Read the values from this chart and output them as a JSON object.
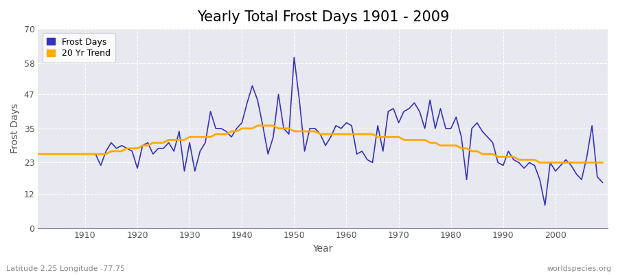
{
  "title": "Yearly Total Frost Days 1901 - 2009",
  "xlabel": "Year",
  "ylabel": "Frost Days",
  "subtitle": "Latitude 2.25 Longitude -77.75",
  "watermark": "worldspecies.org",
  "years": [
    1901,
    1902,
    1903,
    1904,
    1905,
    1906,
    1907,
    1908,
    1909,
    1910,
    1911,
    1912,
    1913,
    1914,
    1915,
    1916,
    1917,
    1918,
    1919,
    1920,
    1921,
    1922,
    1923,
    1924,
    1925,
    1926,
    1927,
    1928,
    1929,
    1930,
    1931,
    1932,
    1933,
    1934,
    1935,
    1936,
    1937,
    1938,
    1939,
    1940,
    1941,
    1942,
    1943,
    1944,
    1945,
    1946,
    1947,
    1948,
    1949,
    1950,
    1951,
    1952,
    1953,
    1954,
    1955,
    1956,
    1957,
    1958,
    1959,
    1960,
    1961,
    1962,
    1963,
    1964,
    1965,
    1966,
    1967,
    1968,
    1969,
    1970,
    1971,
    1972,
    1973,
    1974,
    1975,
    1976,
    1977,
    1978,
    1979,
    1980,
    1981,
    1982,
    1983,
    1984,
    1985,
    1986,
    1987,
    1988,
    1989,
    1990,
    1991,
    1992,
    1993,
    1994,
    1995,
    1996,
    1997,
    1998,
    1999,
    2000,
    2001,
    2002,
    2003,
    2004,
    2005,
    2006,
    2007,
    2008,
    2009
  ],
  "frost_days": [
    26,
    26,
    26,
    26,
    26,
    26,
    26,
    26,
    26,
    26,
    26,
    26,
    22,
    27,
    30,
    28,
    29,
    28,
    27,
    21,
    29,
    30,
    26,
    28,
    28,
    30,
    27,
    34,
    20,
    30,
    20,
    27,
    30,
    41,
    35,
    35,
    34,
    32,
    35,
    37,
    44,
    50,
    45,
    36,
    26,
    32,
    47,
    35,
    33,
    60,
    45,
    27,
    35,
    35,
    33,
    29,
    32,
    36,
    35,
    37,
    36,
    26,
    27,
    24,
    23,
    36,
    27,
    41,
    42,
    37,
    41,
    42,
    44,
    41,
    35,
    45,
    35,
    42,
    35,
    35,
    39,
    32,
    17,
    35,
    37,
    34,
    32,
    30,
    23,
    22,
    27,
    24,
    23,
    21,
    23,
    22,
    17,
    8,
    23,
    20,
    22,
    24,
    22,
    19,
    17,
    25,
    36,
    18,
    16
  ],
  "trend_years": [
    1901,
    1902,
    1903,
    1904,
    1905,
    1906,
    1907,
    1908,
    1909,
    1910,
    1911,
    1912,
    1913,
    1914,
    1915,
    1916,
    1917,
    1918,
    1919,
    1920,
    1921,
    1922,
    1923,
    1924,
    1925,
    1926,
    1927,
    1928,
    1929,
    1930,
    1931,
    1932,
    1933,
    1934,
    1935,
    1936,
    1937,
    1938,
    1939,
    1940,
    1941,
    1942,
    1943,
    1944,
    1945,
    1946,
    1947,
    1948,
    1949,
    1950,
    1951,
    1952,
    1953,
    1954,
    1955,
    1956,
    1957,
    1958,
    1959,
    1960,
    1961,
    1962,
    1963,
    1964,
    1965,
    1966,
    1967,
    1968,
    1969,
    1970,
    1971,
    1972,
    1973,
    1974,
    1975,
    1976,
    1977,
    1978,
    1979,
    1980,
    1981,
    1982,
    1983,
    1984,
    1985,
    1986,
    1987,
    1988,
    1989,
    1990,
    1991,
    1992,
    1993,
    1994,
    1995,
    1996,
    1997,
    1998,
    1999,
    2000,
    2001,
    2002,
    2003,
    2004,
    2005,
    2006,
    2007,
    2008,
    2009
  ],
  "trend_values": [
    26,
    26,
    26,
    26,
    26,
    26,
    26,
    26,
    26,
    26,
    26,
    26,
    26,
    26,
    27,
    27,
    27,
    28,
    28,
    28,
    29,
    29,
    30,
    30,
    30,
    31,
    31,
    31,
    31,
    32,
    32,
    32,
    32,
    32,
    33,
    33,
    33,
    34,
    34,
    35,
    35,
    35,
    36,
    36,
    36,
    36,
    35,
    35,
    35,
    34,
    34,
    34,
    34,
    34,
    33,
    33,
    33,
    33,
    33,
    33,
    33,
    33,
    33,
    33,
    33,
    32,
    32,
    32,
    32,
    32,
    31,
    31,
    31,
    31,
    31,
    30,
    30,
    29,
    29,
    29,
    29,
    28,
    28,
    27,
    27,
    26,
    26,
    26,
    25,
    25,
    25,
    25,
    24,
    24,
    24,
    24,
    23,
    23,
    23,
    23,
    23,
    23,
    23,
    23,
    23,
    23,
    23,
    23,
    23
  ],
  "line_color": "#3333bb",
  "trend_color": "#ffaa00",
  "fig_bg_color": "#ffffff",
  "plot_bg_color": "#e8e8f0",
  "ylim": [
    0,
    70
  ],
  "xlim": [
    1901,
    2010
  ],
  "yticks": [
    0,
    12,
    23,
    35,
    47,
    58,
    70
  ],
  "xticks": [
    1910,
    1920,
    1930,
    1940,
    1950,
    1960,
    1970,
    1980,
    1990,
    2000
  ],
  "grid_color": "#ffffff",
  "title_fontsize": 15,
  "axis_label_fontsize": 10,
  "tick_fontsize": 9,
  "legend_fontsize": 9
}
